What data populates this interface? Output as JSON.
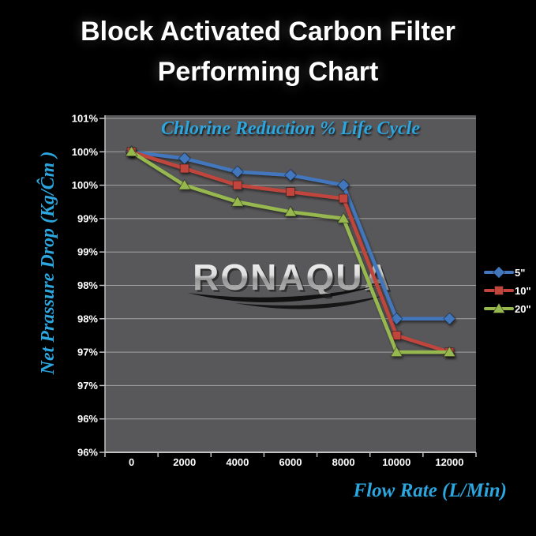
{
  "page": {
    "title_line1": "Block Activated Carbon Filter",
    "title_line2": "Performing Chart"
  },
  "colors": {
    "background": "#000000",
    "title_text": "#FFFFFF",
    "accent_cyan": "#2CA6DF",
    "tick_text": "#FFFFFF",
    "plot_bg": "#58585A",
    "gridline": "#A3A3A3"
  },
  "chart_data": {
    "type": "line",
    "title": "Chlorine Reduction % Life Cycle",
    "xlabel": "Flow Rate (L/Min)",
    "ylabel": "Net Prassure Drop (Kg/Ĉm )",
    "watermark": "RONAQUA",
    "categories": [
      0,
      2000,
      4000,
      6000,
      8000,
      10000,
      12000
    ],
    "x_tick_labels": [
      "0",
      "2000",
      "4000",
      "6000",
      "8000",
      "10000",
      "12000"
    ],
    "y_tick_labels_top_to_bottom": [
      "101%",
      "100%",
      "100%",
      "99%",
      "99%",
      "98%",
      "98%",
      "97%",
      "97%",
      "96%",
      "96%"
    ],
    "ylim": [
      96,
      101
    ],
    "y_tick_step": 0.5,
    "grid": true,
    "legend_position": "right",
    "plot_bg": "#58585A",
    "gridline_color": "#A3A3A3",
    "series": [
      {
        "name": "5\"",
        "marker": "diamond",
        "color": "#4377BE",
        "values": [
          100.5,
          100.4,
          100.2,
          100.15,
          100.0,
          98.0,
          98.0
        ]
      },
      {
        "name": "10\"",
        "marker": "square",
        "color": "#C0443E",
        "values": [
          100.5,
          100.25,
          100.0,
          99.9,
          99.8,
          97.75,
          97.5
        ]
      },
      {
        "name": "20\"",
        "marker": "triangle-up",
        "color": "#96B84F",
        "values": [
          100.5,
          100.0,
          99.75,
          99.6,
          99.5,
          97.5,
          97.5
        ]
      }
    ]
  }
}
